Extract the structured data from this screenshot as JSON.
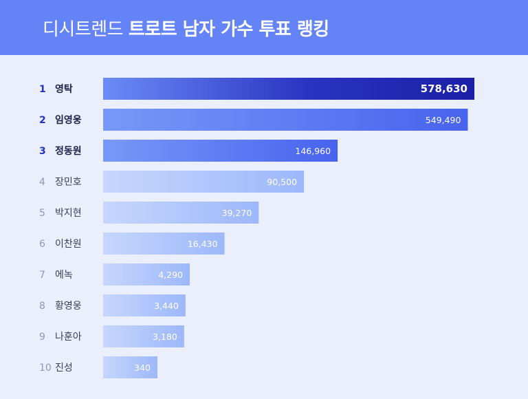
{
  "header": {
    "brand": "디시트렌드",
    "title": "트로트 남자 가수 투표 랭킹",
    "background": "#6483f6"
  },
  "chart_data": {
    "type": "bar",
    "orientation": "horizontal",
    "title": "디시트렌드 트로트 남자 가수 투표 랭킹",
    "ranks": [
      "1",
      "2",
      "3",
      "4",
      "5",
      "6",
      "7",
      "8",
      "9",
      "10"
    ],
    "categories": [
      "영탁",
      "임영웅",
      "정동원",
      "장민호",
      "박지현",
      "이찬원",
      "에녹",
      "황영웅",
      "나훈아",
      "진성"
    ],
    "values": [
      578630,
      549490,
      146960,
      90500,
      39270,
      16430,
      4290,
      3440,
      3180,
      340
    ],
    "value_labels": [
      "578,630",
      "549,490",
      "146,960",
      "90,500",
      "39,270",
      "16,430",
      "4,290",
      "3,440",
      "3,180",
      "340"
    ],
    "scale": "nonlinear (display)",
    "grid": false,
    "legend": "none",
    "colors": {
      "top": "#1a1fa6",
      "high": "#5470f1",
      "low": "#a7c0fb",
      "rank_top": "#2331c5",
      "rank_other": "#8e97b8",
      "name_top": "#1d2048",
      "name_other": "#3b3f56"
    }
  }
}
